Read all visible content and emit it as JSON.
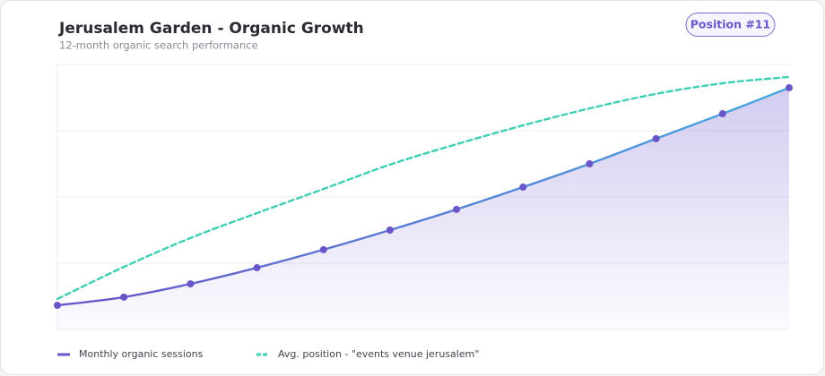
{
  "chart_data": {
    "type": "line",
    "title": "Jerusalem Garden - Organic Growth",
    "subtitle": "12-month organic search performance",
    "badge": "Position #11",
    "categories": [
      null,
      null,
      null,
      null,
      null,
      null,
      null,
      null,
      null,
      null,
      null,
      null
    ],
    "series": [
      {
        "name": "Monthly organic sessions",
        "color": "#6a55c9",
        "line_end_color": "#45a8e0",
        "dashed": false,
        "markers": true,
        "area": true,
        "values": [
          9.1,
          12.2,
          17.2,
          23.3,
          30.1,
          37.5,
          45.3,
          53.7,
          62.5,
          72.0,
          81.4,
          91.2
        ]
      },
      {
        "name": "Avg. position - \"events venue jerusalem\"",
        "color": "#3fcfb5",
        "dashed": true,
        "markers": false,
        "area": false,
        "values": [
          11.5,
          23.6,
          34.5,
          43.9,
          53.0,
          62.2,
          69.9,
          77.0,
          83.4,
          88.9,
          92.9,
          95.3
        ]
      }
    ],
    "ylim": [
      0,
      100
    ],
    "yticks": [
      0,
      25,
      50,
      75,
      100
    ],
    "grid": true
  }
}
